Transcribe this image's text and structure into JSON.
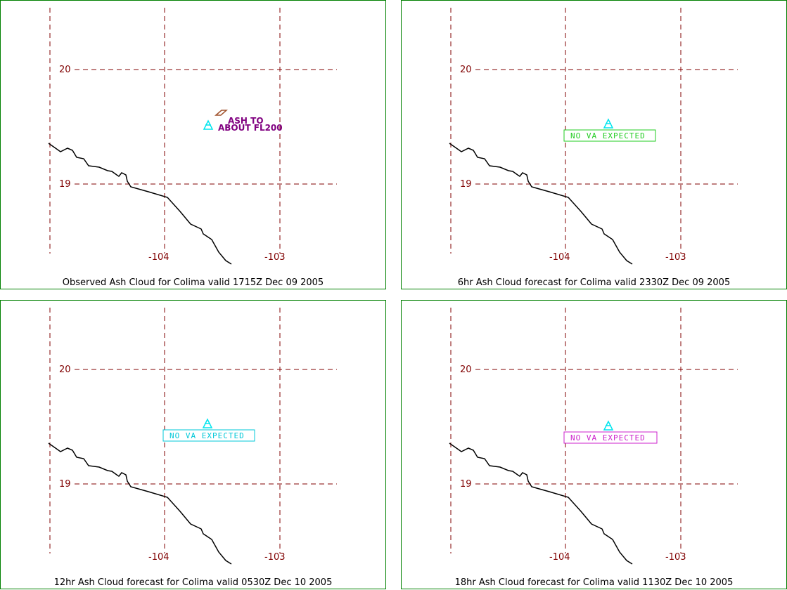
{
  "panels": [
    {
      "caption": "Observed Ash Cloud for Colima valid 1715Z Dec 09 2005",
      "lat_labels": [
        "20",
        "19"
      ],
      "lon_labels": [
        "-104",
        "-103"
      ],
      "annotation": {
        "type": "ash",
        "lines": [
          "ASH TO",
          "ABOUT FL200"
        ],
        "color": "#800080",
        "polygon_color": "#a0522d"
      },
      "volcano_color": "#00e5ee"
    },
    {
      "caption": "6hr Ash Cloud forecast for Colima valid 2330Z Dec 09 2005",
      "lat_labels": [
        "20",
        "19"
      ],
      "lon_labels": [
        "-104",
        "-103"
      ],
      "annotation": {
        "type": "none",
        "text": "NO VA EXPECTED",
        "color": "#22cc22"
      },
      "volcano_color": "#00e5ee"
    },
    {
      "caption": "12hr Ash Cloud forecast for Colima valid 0530Z Dec 10 2005",
      "lat_labels": [
        "20",
        "19"
      ],
      "lon_labels": [
        "-104",
        "-103"
      ],
      "annotation": {
        "type": "none",
        "text": "NO VA EXPECTED",
        "color": "#00c8d8"
      },
      "volcano_color": "#00e5ee"
    },
    {
      "caption": "18hr Ash Cloud forecast for Colima valid 1130Z Dec 10 2005",
      "lat_labels": [
        "20",
        "19"
      ],
      "lon_labels": [
        "-104",
        "-103"
      ],
      "annotation": {
        "type": "none",
        "text": "NO VA EXPECTED",
        "color": "#cc22cc"
      },
      "volcano_color": "#00e5ee"
    }
  ],
  "colors": {
    "grid": "#800000",
    "border": "#008000",
    "coastline": "#000000"
  }
}
